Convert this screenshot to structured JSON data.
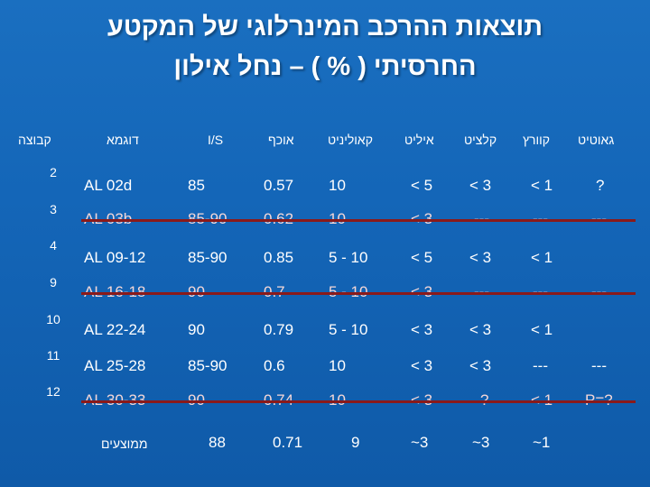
{
  "title": {
    "line1": "תוצאות ההרכב המינרלוגי של המקטע",
    "line2": "החרסיתי ( % ) – נחל אילון"
  },
  "table": {
    "headers": [
      "קבוצה",
      "דוגמא",
      "I/S",
      "אוכף",
      "קאוליניט",
      "איליט",
      "קלציט",
      "קוורץ",
      "גאוטיט"
    ],
    "groups": [
      "2",
      "3",
      "4",
      "9",
      "10",
      "11",
      "12"
    ],
    "rows": [
      {
        "sample": "AL 02d",
        "is": "85",
        "ochef": "0.57",
        "kaolinite": "10",
        "illite": "< 5",
        "calcite": "< 3",
        "quartz": "< 1",
        "goethite": "?",
        "struck": false
      },
      {
        "sample": "AL 03b",
        "is": "85-90",
        "ochef": "0.62",
        "kaolinite": "10",
        "illite": "< 3",
        "calcite": "---",
        "quartz": "---",
        "goethite": "---",
        "struck": true
      },
      {
        "sample": "AL 09-12",
        "is": "85-90",
        "ochef": "0.85",
        "kaolinite": "5 - 10",
        "illite": "< 5",
        "calcite": "< 3",
        "quartz": "< 1",
        "goethite": "",
        "struck": false
      },
      {
        "sample": "AL 16-18",
        "is": "90",
        "ochef": "0.7",
        "kaolinite": "5 - 10",
        "illite": "< 3",
        "calcite": "---",
        "quartz": "---",
        "goethite": "---",
        "struck": true
      },
      {
        "sample": "AL 22-24",
        "is": "90",
        "ochef": "0.79",
        "kaolinite": "5 - 10",
        "illite": "< 3",
        "calcite": "< 3",
        "quartz": "< 1",
        "goethite": "",
        "struck": false
      },
      {
        "sample": "AL 25-28",
        "is": "85-90",
        "ochef": "0.6",
        "kaolinite": "10",
        "illite": "< 3",
        "calcite": "< 3",
        "quartz": "---",
        "goethite": "---",
        "struck": false
      },
      {
        "sample": "AL 30-33",
        "is": "90",
        "ochef": "0.74",
        "kaolinite": "10",
        "illite": "< 3",
        "calcite": "?",
        "quartz": "< 1",
        "goethite": "P=?",
        "struck": true
      }
    ],
    "averages": {
      "label": "ממוצעים",
      "is": "88",
      "ochef": "0.71",
      "kaolinite": "9",
      "illite": "~3",
      "calcite": "~3",
      "quartz": "~1"
    }
  },
  "colors": {
    "background": "#1466b8",
    "text": "#ffffff",
    "strike": "#8a1a1a"
  }
}
